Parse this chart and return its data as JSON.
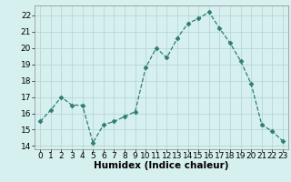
{
  "x": [
    0,
    1,
    2,
    3,
    4,
    5,
    6,
    7,
    8,
    9,
    10,
    11,
    12,
    13,
    14,
    15,
    16,
    17,
    18,
    19,
    20,
    21,
    22,
    23
  ],
  "y": [
    15.5,
    16.2,
    17.0,
    16.5,
    16.5,
    14.2,
    15.3,
    15.5,
    15.8,
    16.1,
    18.8,
    20.0,
    19.4,
    20.6,
    21.5,
    21.8,
    22.2,
    21.2,
    20.3,
    19.2,
    17.8,
    15.3,
    14.9,
    14.3
  ],
  "line_color": "#2e7d6e",
  "marker": "D",
  "marker_size": 2.5,
  "bg_color": "#d6f0ef",
  "grid_color": "#b8d8d4",
  "xlabel": "Humidex (Indice chaleur)",
  "ylim": [
    13.8,
    22.6
  ],
  "xlim": [
    -0.5,
    23.5
  ],
  "yticks": [
    14,
    15,
    16,
    17,
    18,
    19,
    20,
    21,
    22
  ],
  "xticks": [
    0,
    1,
    2,
    3,
    4,
    5,
    6,
    7,
    8,
    9,
    10,
    11,
    12,
    13,
    14,
    15,
    16,
    17,
    18,
    19,
    20,
    21,
    22,
    23
  ],
  "tick_fontsize": 6.5,
  "label_fontsize": 7.5
}
